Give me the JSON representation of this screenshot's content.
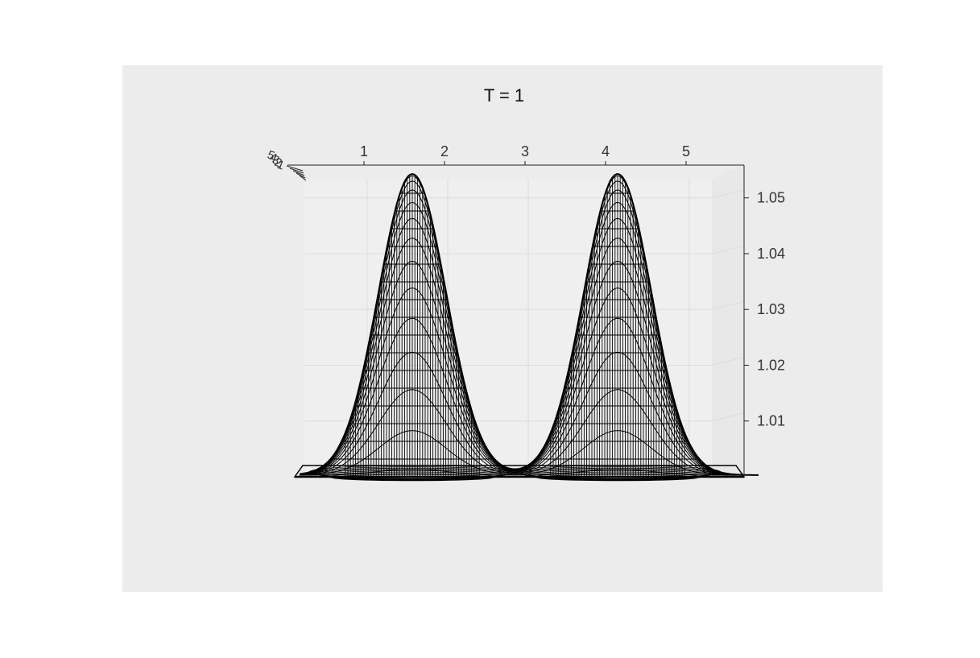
{
  "figure": {
    "title": "T = 1"
  },
  "colors": {
    "figure_background": "#ffffff",
    "axes_background": "#ececec",
    "pane_background": "#efefef",
    "grid": "#dcdcdc",
    "mesh": "#000000",
    "axis_text": "#333333"
  },
  "chart_data": {
    "type": "surface",
    "title": "T = 1",
    "style": "wireframe mesh",
    "x_ticks": [
      "1",
      "2",
      "3",
      "4",
      "5"
    ],
    "z_ticks": [
      "1.01",
      "1.02",
      "1.03",
      "1.04",
      "1.05"
    ],
    "y_ticks_overlapping": [
      "5",
      "4",
      "3",
      "2",
      "1"
    ],
    "xlim": [
      0.2,
      5.9
    ],
    "zlim": [
      1.0,
      1.055
    ],
    "grid": true,
    "peaks": [
      {
        "center_x": 1.6,
        "height": 1.054
      },
      {
        "center_x": 4.15,
        "height": 1.054
      }
    ],
    "baseline": 1.0
  }
}
